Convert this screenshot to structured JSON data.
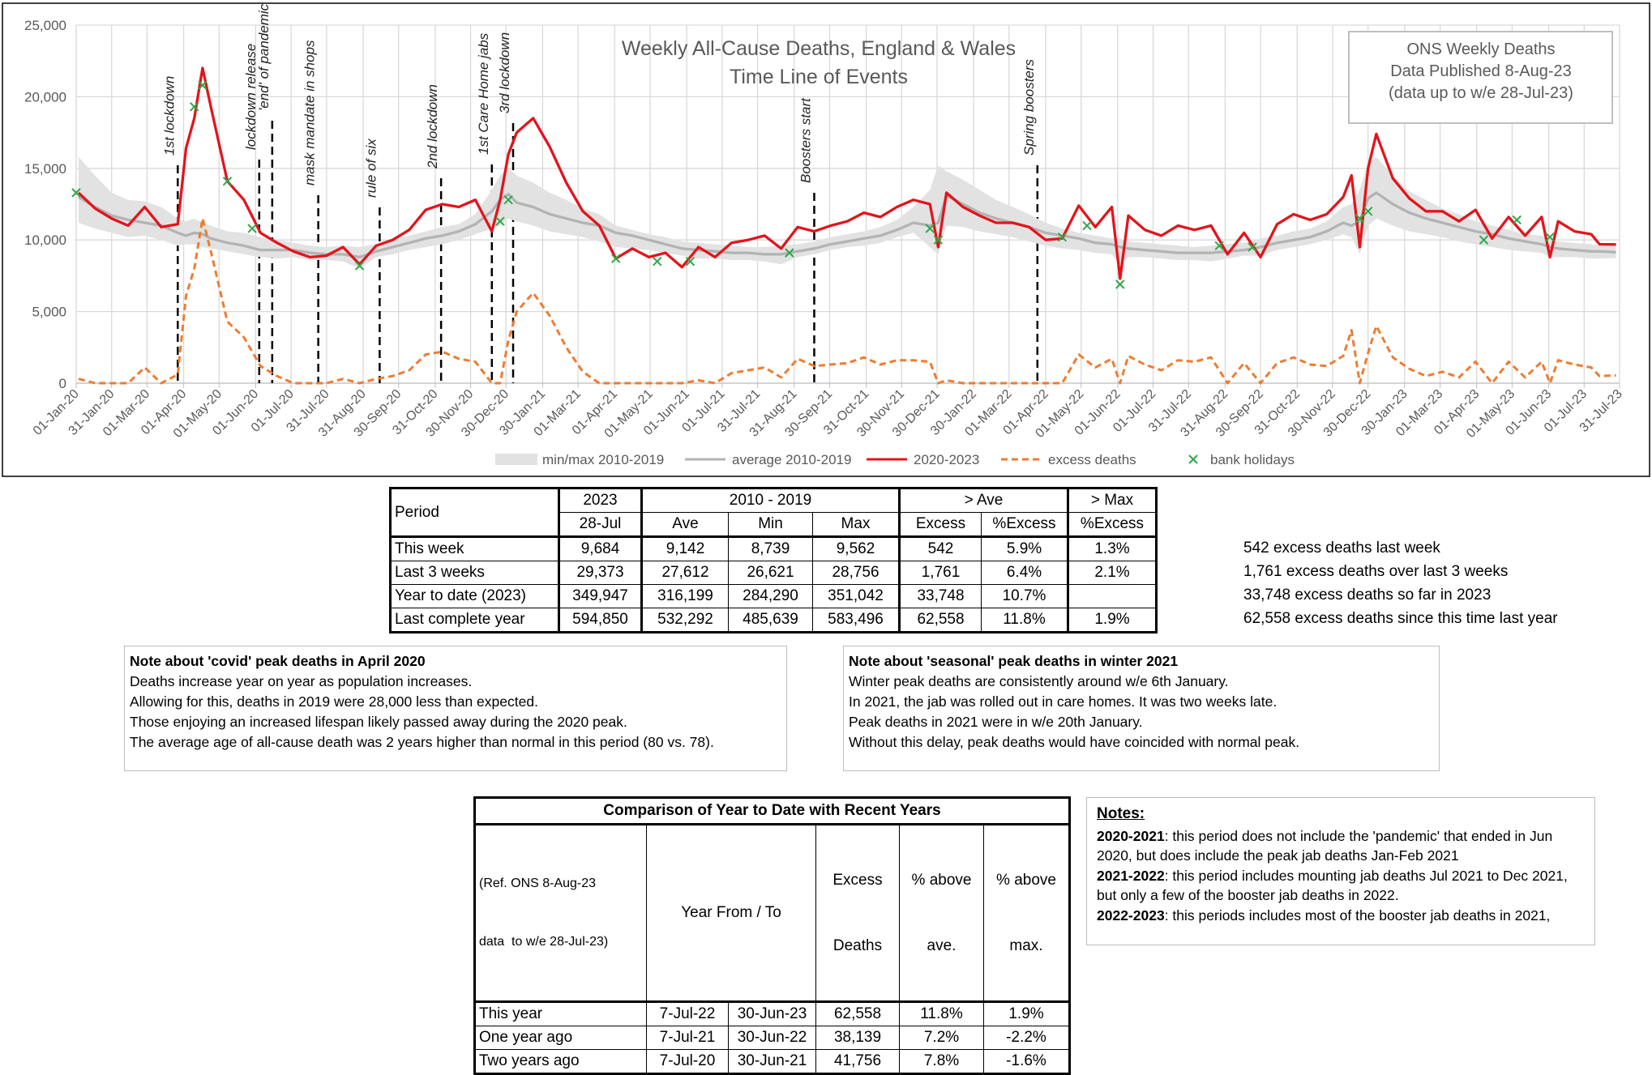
{
  "chart_data": {
    "type": "line",
    "title": [
      "Weekly All-Cause Deaths, England & Wales",
      "Time Line of Events"
    ],
    "info_box": [
      "ONS Weekly Deaths",
      "Data Published 8-Aug-23",
      "(data up to w/e 28-Jul-23)"
    ],
    "xlim": [
      "01-Jan-20",
      "31-Jul-23"
    ],
    "xticks": [
      "01-Jan-20",
      "31-Jan-20",
      "01-Mar-20",
      "01-Apr-20",
      "01-May-20",
      "01-Jun-20",
      "01-Jul-20",
      "31-Jul-20",
      "31-Aug-20",
      "30-Sep-20",
      "31-Oct-20",
      "30-Nov-20",
      "30-Dec-20",
      "30-Jan-21",
      "01-Mar-21",
      "01-Apr-21",
      "01-May-21",
      "01-Jun-21",
      "01-Jul-21",
      "31-Jul-21",
      "31-Aug-21",
      "30-Sep-21",
      "31-Oct-21",
      "30-Nov-21",
      "30-Dec-21",
      "30-Jan-22",
      "01-Mar-22",
      "01-Apr-22",
      "01-May-22",
      "01-Jun-22",
      "01-Jul-22",
      "31-Jul-22",
      "31-Aug-22",
      "30-Sep-22",
      "31-Oct-22",
      "30-Nov-22",
      "30-Dec-22",
      "30-Jan-23",
      "01-Mar-23",
      "01-Apr-23",
      "01-May-23",
      "01-Jun-23",
      "01-Jul-23",
      "31-Jul-23"
    ],
    "ylim": [
      0,
      25000
    ],
    "yticks": [
      0,
      {
        "value": 5000,
        "label": "5,000"
      },
      {
        "value": 10000,
        "label": "10,000"
      },
      {
        "value": 15000,
        "label": "15,000"
      },
      {
        "value": 20000,
        "label": "20,000"
      },
      {
        "value": 25000,
        "label": "25,000"
      }
    ],
    "grid": true,
    "legend": "bottom",
    "x": [
      "03-Jan-20",
      "17-Jan-20",
      "31-Jan-20",
      "14-Feb-20",
      "28-Feb-20",
      "13-Mar-20",
      "27-Mar-20",
      "03-Apr-20",
      "10-Apr-20",
      "17-Apr-20",
      "24-Apr-20",
      "08-May-20",
      "22-May-20",
      "05-Jun-20",
      "19-Jun-20",
      "03-Jul-20",
      "17-Jul-20",
      "31-Jul-20",
      "14-Aug-20",
      "28-Aug-20",
      "11-Sep-20",
      "25-Sep-20",
      "09-Oct-20",
      "23-Oct-20",
      "06-Nov-20",
      "20-Nov-20",
      "04-Dec-20",
      "18-Dec-20",
      "25-Dec-20",
      "01-Jan-21",
      "08-Jan-21",
      "22-Jan-21",
      "05-Feb-21",
      "19-Feb-21",
      "05-Mar-21",
      "19-Mar-21",
      "02-Apr-21",
      "16-Apr-21",
      "30-Apr-21",
      "14-May-21",
      "28-May-21",
      "11-Jun-21",
      "25-Jun-21",
      "09-Jul-21",
      "23-Jul-21",
      "06-Aug-21",
      "20-Aug-21",
      "03-Sep-21",
      "17-Sep-21",
      "01-Oct-21",
      "15-Oct-21",
      "29-Oct-21",
      "12-Nov-21",
      "26-Nov-21",
      "10-Dec-21",
      "24-Dec-21",
      "31-Dec-21",
      "07-Jan-22",
      "21-Jan-22",
      "04-Feb-22",
      "18-Feb-22",
      "04-Mar-22",
      "18-Mar-22",
      "01-Apr-22",
      "15-Apr-22",
      "29-Apr-22",
      "13-May-22",
      "27-May-22",
      "03-Jun-22",
      "10-Jun-22",
      "24-Jun-22",
      "08-Jul-22",
      "22-Jul-22",
      "05-Aug-22",
      "19-Aug-22",
      "02-Sep-22",
      "16-Sep-22",
      "30-Sep-22",
      "14-Oct-22",
      "28-Oct-22",
      "11-Nov-22",
      "25-Nov-22",
      "09-Dec-22",
      "16-Dec-22",
      "23-Dec-22",
      "30-Dec-22",
      "06-Jan-23",
      "20-Jan-23",
      "03-Feb-23",
      "17-Feb-23",
      "03-Mar-23",
      "17-Mar-23",
      "31-Mar-23",
      "14-Apr-23",
      "28-Apr-23",
      "12-May-23",
      "26-May-23",
      "02-Jun-23",
      "09-Jun-23",
      "23-Jun-23",
      "07-Jul-23",
      "14-Jul-23",
      "28-Jul-23"
    ],
    "series": [
      {
        "name": "min/max 2010-2019",
        "type": "band",
        "color": "#e2e2e2",
        "min": [
          11200,
          10800,
          10500,
          10200,
          10300,
          10000,
          9600,
          9700,
          9700,
          9500,
          9400,
          9200,
          9000,
          8800,
          8700,
          8800,
          8600,
          8600,
          8500,
          8000,
          8800,
          9000,
          9300,
          9500,
          9700,
          10000,
          10400,
          10800,
          11000,
          11500,
          11300,
          11000,
          10600,
          10400,
          10200,
          9900,
          9500,
          9400,
          9300,
          9100,
          8900,
          8700,
          8700,
          8600,
          8600,
          8500,
          8300,
          8800,
          9000,
          9300,
          9500,
          9600,
          9800,
          10200,
          10500,
          9500,
          9000,
          11000,
          10900,
          10600,
          10400,
          10200,
          9900,
          9600,
          9400,
          9300,
          9100,
          9000,
          8300,
          8800,
          8800,
          8700,
          8600,
          8600,
          8500,
          8700,
          8900,
          8900,
          9300,
          9500,
          9700,
          10000,
          10400,
          10200,
          9000,
          11000,
          11500,
          11000,
          10600,
          10400,
          10200,
          9900,
          9700,
          9500,
          9300,
          9200,
          9100,
          8800,
          8800,
          8800,
          8700,
          8700,
          8739
        ],
        "max": [
          15800,
          14500,
          13300,
          12800,
          12700,
          12300,
          11500,
          11300,
          11500,
          11200,
          11000,
          10600,
          10500,
          10200,
          10000,
          9800,
          9600,
          9500,
          9600,
          9500,
          9700,
          10000,
          10300,
          10600,
          10900,
          11100,
          11800,
          13500,
          14500,
          15000,
          14500,
          14000,
          13300,
          12800,
          12200,
          11800,
          11000,
          10700,
          10400,
          10200,
          9900,
          9800,
          9700,
          9600,
          9500,
          9500,
          9600,
          9700,
          9900,
          10200,
          10400,
          10600,
          10900,
          11400,
          12300,
          13500,
          15200,
          14800,
          14200,
          13500,
          12800,
          12300,
          11800,
          11200,
          10800,
          10500,
          10300,
          10100,
          10100,
          9900,
          9800,
          9700,
          9600,
          9500,
          9600,
          9700,
          9800,
          10100,
          10300,
          10600,
          10800,
          11300,
          12300,
          12500,
          13500,
          15400,
          15800,
          14500,
          13400,
          12800,
          12200,
          11800,
          11300,
          11000,
          10700,
          10400,
          10300,
          10000,
          9900,
          9800,
          9700,
          9600,
          9562
        ]
      },
      {
        "name": "average 2010-2019",
        "color": "#b3b3b3",
        "values": [
          13000,
          12300,
          11700,
          11400,
          11200,
          11000,
          10500,
          10300,
          10500,
          10400,
          10100,
          9800,
          9600,
          9300,
          9300,
          9300,
          9100,
          9000,
          9000,
          8800,
          9200,
          9500,
          9800,
          10100,
          10300,
          10600,
          11100,
          12000,
          12800,
          13200,
          12600,
          12300,
          11800,
          11500,
          11200,
          11000,
          10500,
          10300,
          10000,
          9700,
          9400,
          9300,
          9200,
          9100,
          9100,
          9000,
          9000,
          9200,
          9400,
          9700,
          9900,
          10100,
          10300,
          10700,
          11200,
          11000,
          11200,
          13100,
          12500,
          11900,
          11500,
          11200,
          10900,
          10500,
          10300,
          10100,
          9800,
          9700,
          9500,
          9400,
          9300,
          9200,
          9100,
          9100,
          9100,
          9200,
          9300,
          9500,
          9800,
          10000,
          10200,
          10600,
          11200,
          11000,
          11300,
          12900,
          13300,
          12500,
          11900,
          11500,
          11200,
          10900,
          10600,
          10400,
          10100,
          9900,
          9700,
          9500,
          9400,
          9300,
          9200,
          9200,
          9142
        ]
      },
      {
        "name": "2020-2023",
        "color": "#e3141b",
        "values": [
          13300,
          12200,
          11500,
          11000,
          12300,
          10900,
          11100,
          16400,
          18500,
          22000,
          19300,
          14100,
          12800,
          10500,
          9800,
          9200,
          8800,
          8900,
          9500,
          8300,
          9600,
          10000,
          10700,
          12100,
          12500,
          12300,
          12800,
          10600,
          12800,
          16000,
          17500,
          18500,
          16500,
          14000,
          12000,
          11000,
          8700,
          9400,
          8800,
          9100,
          8100,
          9500,
          8800,
          9800,
          10000,
          10300,
          9400,
          10900,
          10600,
          11000,
          11300,
          11900,
          11600,
          12300,
          12800,
          12500,
          9500,
          13300,
          12300,
          11700,
          11200,
          11200,
          10900,
          10000,
          10100,
          12400,
          10900,
          12300,
          7300,
          11700,
          10700,
          10300,
          11000,
          10700,
          11000,
          9000,
          10500,
          8800,
          11100,
          11800,
          11400,
          11800,
          13000,
          14500,
          9500,
          15000,
          17400,
          14300,
          12900,
          12000,
          12000,
          11300,
          12100,
          10100,
          11600,
          10300,
          11600,
          8800,
          11300,
          10600,
          10400,
          9700,
          9684
        ]
      },
      {
        "name": "excess deaths",
        "color": "#ed7d31",
        "dash": true,
        "values": [
          300,
          0,
          0,
          0,
          1100,
          0,
          600,
          6100,
          8000,
          11500,
          9200,
          4300,
          3200,
          1200,
          500,
          0,
          0,
          0,
          300,
          0,
          300,
          500,
          900,
          2000,
          2200,
          1700,
          1500,
          0,
          0,
          3000,
          5000,
          6300,
          4700,
          2500,
          800,
          0,
          0,
          0,
          0,
          0,
          0,
          200,
          0,
          700,
          900,
          1100,
          400,
          1700,
          1200,
          1300,
          1400,
          1800,
          1300,
          1600,
          1600,
          1500,
          0,
          200,
          0,
          0,
          0,
          0,
          0,
          0,
          0,
          2000,
          1100,
          1700,
          0,
          1900,
          1300,
          900,
          1600,
          1500,
          1800,
          0,
          1400,
          0,
          1400,
          1800,
          1300,
          1200,
          1900,
          3700,
          0,
          2100,
          4000,
          1800,
          1000,
          500,
          800,
          400,
          1500,
          0,
          1500,
          400,
          1500,
          0,
          1600,
          1300,
          1100,
          500,
          542
        ]
      },
      {
        "name": "bank holidays",
        "type": "scatter",
        "color": "#2ca84a",
        "x": [
          "01-Jan-20",
          "10-Apr-20",
          "17-Apr-20",
          "08-May-20",
          "29-May-20",
          "28-Aug-20",
          "25-Dec-20",
          "01-Jan-21",
          "02-Apr-21",
          "07-May-21",
          "04-Jun-21",
          "27-Aug-21",
          "24-Dec-21",
          "31-Dec-21",
          "15-Apr-22",
          "06-May-22",
          "03-Jun-22",
          "26-Aug-22",
          "23-Sep-22",
          "23-Dec-22",
          "30-Dec-22",
          "07-Apr-23",
          "05-May-23",
          "02-Jun-23"
        ],
        "values": [
          13300,
          19300,
          20800,
          14100,
          10800,
          8200,
          11300,
          12800,
          8700,
          8500,
          8500,
          9100,
          10800,
          10000,
          10200,
          11000,
          6900,
          9600,
          9500,
          11500,
          12000,
          10000,
          11400,
          10200
        ]
      }
    ],
    "events": [
      {
        "label": "1st lockdown",
        "x": "27-Mar-20"
      },
      {
        "label": "lockdown release",
        "x": "04-Jun-20"
      },
      {
        "label": "'end' of pandemic",
        "x": "15-Jun-20"
      },
      {
        "label": "mask mandate in shops",
        "x": "24-Jul-20"
      },
      {
        "label": "rule of six",
        "x": "14-Sep-20"
      },
      {
        "label": "2nd lockdown",
        "x": "05-Nov-20"
      },
      {
        "label": "1st Care Home jabs",
        "x": "18-Dec-20"
      },
      {
        "label": "3rd lockdown",
        "x": "05-Jan-21"
      },
      {
        "label": "Boosters start",
        "x": "17-Sep-21"
      },
      {
        "label": "Spring boosters",
        "x": "25-Mar-22"
      }
    ]
  },
  "summary_table": {
    "header": {
      "period": "Period",
      "year": "2023",
      "baseline": "2010 - 2019",
      "above_ave": "> Ave",
      "above_max": "> Max"
    },
    "subheader": [
      "28-Jul",
      "Ave",
      "Min",
      "Max",
      "Excess",
      "%Excess",
      "%Excess"
    ],
    "rows": [
      [
        "This week",
        "9,684",
        "9,142",
        "8,739",
        "9,562",
        "542",
        "5.9%",
        "1.3%"
      ],
      [
        "Last 3 weeks",
        "29,373",
        "27,612",
        "26,621",
        "28,756",
        "1,761",
        "6.4%",
        "2.1%"
      ],
      [
        "Year to date (2023)",
        "349,947",
        "316,199",
        "284,290",
        "351,042",
        "33,748",
        "10.7%",
        null
      ],
      [
        "Last complete year",
        "594,850",
        "532,292",
        "485,639",
        "583,496",
        "62,558",
        "11.8%",
        "1.9%"
      ]
    ],
    "side_notes": [
      "542 excess deaths last week",
      "1,761 excess deaths over last 3 weeks",
      "33,748 excess deaths so far in 2023",
      "62,558 excess deaths since this time last year"
    ]
  },
  "note_covid": {
    "title": "Note about 'covid' peak deaths in April 2020",
    "lines": [
      "Deaths increase year on year as population increases.",
      "Allowing for this, deaths in 2019 were 28,000 less than expected.",
      "Those enjoying an increased lifespan likely passed away during the 2020 peak.",
      "The average age of all-cause death was 2 years higher than normal in this period (80 vs. 78)."
    ]
  },
  "note_seasonal": {
    "title": "Note about 'seasonal' peak deaths in winter 2021",
    "lines": [
      "Winter peak deaths are consistently around w/e 6th January.",
      "In 2021, the jab was rolled out in care homes. It was two weeks late.",
      "Peak deaths in 2021 were in w/e 20th January.",
      "Without this delay, peak deaths would have coincided with normal peak."
    ]
  },
  "comparison_table": {
    "title": "Comparison of Year to Date with Recent Years",
    "ref": [
      "(Ref. ONS 8-Aug-23",
      "data  to w/e 28-Jul-23)"
    ],
    "period": "Year From / To",
    "excess": [
      "Excess",
      "Deaths"
    ],
    "pct_ave": [
      "% above",
      "ave."
    ],
    "pct_max": [
      "% above",
      "max."
    ],
    "rows": [
      [
        "This year",
        "7-Jul-22",
        "30-Jun-23",
        "62,558",
        "11.8%",
        "1.9%"
      ],
      [
        "One year ago",
        "7-Jul-21",
        "30-Jun-22",
        "38,139",
        "7.2%",
        "-2.2%"
      ],
      [
        "Two years ago",
        "7-Jul-20",
        "30-Jun-21",
        "41,756",
        "7.8%",
        "-1.6%"
      ]
    ]
  },
  "notes": {
    "heading": "Notes:",
    "items": [
      {
        "label": "2020-2021",
        "text": ": this period does not include the 'pandemic' that ended in Jun 2020, but does include the peak jab deaths Jan-Feb 2021"
      },
      {
        "label": "2021-2022",
        "text": ": this period includes mounting jab deaths Jul 2021 to Dec 2021, but only a few of the booster jab deaths in 2022."
      },
      {
        "label": "2022-2023",
        "text": ": this periods includes most of the booster jab deaths in 2021,"
      }
    ]
  }
}
